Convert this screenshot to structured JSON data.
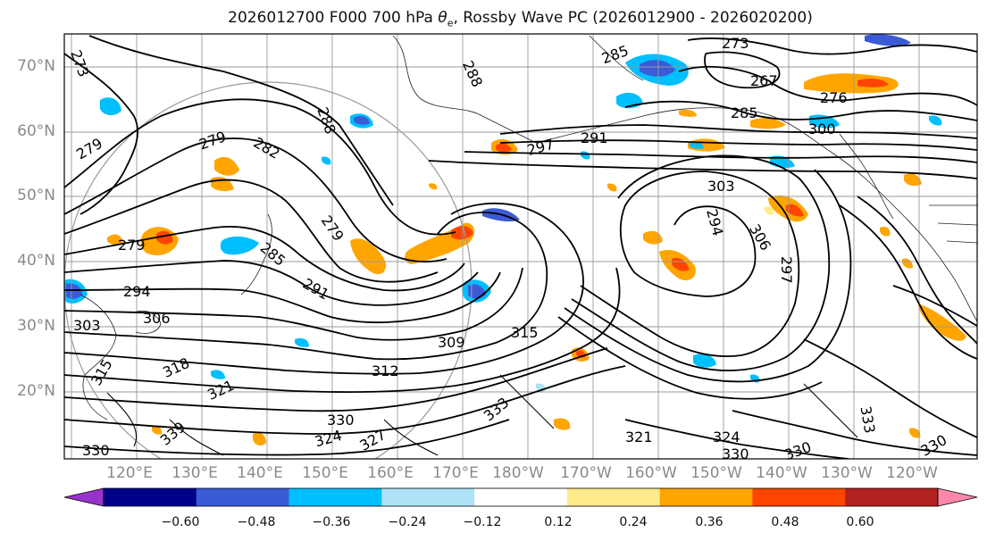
{
  "title_text": "2026012700 F000 700 hPa ",
  "title_symbol": "θ",
  "title_sub": "e",
  "title_rest": ", Rossby Wave PC (2026012900 - 2026020200)",
  "lat_labels": [
    "70°N",
    "60°N",
    "50°N",
    "40°N",
    "30°N",
    "20°N"
  ],
  "lon_labels": [
    "120°E",
    "130°E",
    "140°E",
    "150°E",
    "160°E",
    "170°E",
    "180°W",
    "170°W",
    "160°W",
    "150°W",
    "140°W",
    "130°W",
    "120°W"
  ],
  "colorbar": {
    "ticks": [
      "−0.60",
      "−0.48",
      "−0.36",
      "−0.24",
      "−0.12",
      "0.12",
      "0.24",
      "0.36",
      "0.48",
      "0.60"
    ],
    "colors": [
      "#9932cc",
      "#00008b",
      "#3b5bd6",
      "#00bfff",
      "#aee2f7",
      "#ffffff",
      "#ffeb8c",
      "#ffa500",
      "#ff4500",
      "#b22222",
      "#ff88aa"
    ]
  },
  "contour_labels": [
    {
      "text": "273"
    },
    {
      "text": "279"
    },
    {
      "text": "279"
    },
    {
      "text": "282"
    },
    {
      "text": "288"
    },
    {
      "text": "279"
    },
    {
      "text": "285"
    },
    {
      "text": "291"
    },
    {
      "text": "294"
    },
    {
      "text": "303"
    },
    {
      "text": "306"
    },
    {
      "text": "309"
    },
    {
      "text": "312"
    },
    {
      "text": "318"
    },
    {
      "text": "321"
    },
    {
      "text": "315"
    },
    {
      "text": "330"
    },
    {
      "text": "324"
    },
    {
      "text": "327"
    },
    {
      "text": "333"
    },
    {
      "text": "285"
    },
    {
      "text": "288"
    },
    {
      "text": "297"
    },
    {
      "text": "291"
    },
    {
      "text": "273"
    },
    {
      "text": "267"
    },
    {
      "text": "276"
    },
    {
      "text": "285"
    },
    {
      "text": "300"
    },
    {
      "text": "303"
    },
    {
      "text": "294"
    },
    {
      "text": "306"
    },
    {
      "text": "297"
    },
    {
      "text": "321"
    },
    {
      "text": "324"
    },
    {
      "text": "330"
    },
    {
      "text": "330"
    },
    {
      "text": "330"
    },
    {
      "text": "333"
    },
    {
      "text": "315"
    },
    {
      "text": "330"
    },
    {
      "text": "339"
    },
    {
      "text": "279"
    }
  ]
}
